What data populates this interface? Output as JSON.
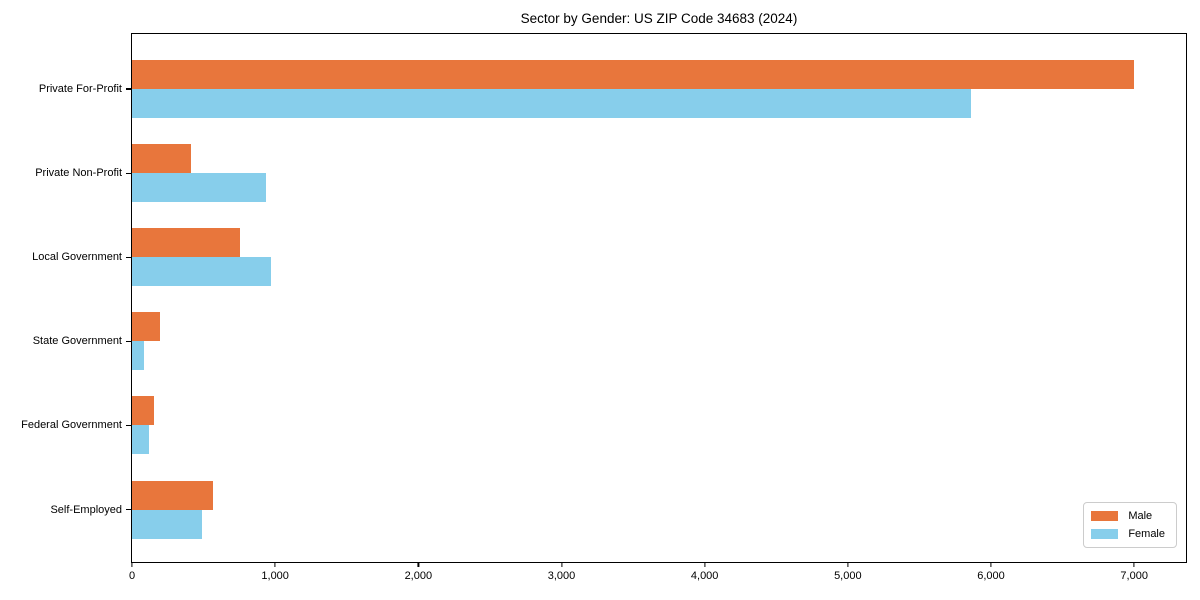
{
  "chart_data": {
    "type": "bar",
    "orientation": "horizontal",
    "title": "Sector by Gender: US ZIP Code 34683 (2024)",
    "categories": [
      "Private For-Profit",
      "Private Non-Profit",
      "Local Government",
      "State Government",
      "Federal Government",
      "Self-Employed"
    ],
    "series": [
      {
        "name": "Male",
        "color": "#e8763c",
        "values": [
          7000,
          413,
          753,
          197,
          151,
          567
        ]
      },
      {
        "name": "Female",
        "color": "#87ceeb",
        "values": [
          5857,
          939,
          973,
          86,
          116,
          488
        ]
      }
    ],
    "xlabel": "",
    "ylabel": "",
    "xlim": [
      0,
      7362
    ],
    "xticks": [
      0,
      1000,
      2000,
      3000,
      4000,
      5000,
      6000,
      7000
    ],
    "xtick_labels": [
      "0",
      "1,000",
      "2,000",
      "3,000",
      "4,000",
      "5,000",
      "6,000",
      "7,000"
    ],
    "grid": false,
    "legend": {
      "position": "lower right",
      "entries": [
        "Male",
        "Female"
      ]
    }
  }
}
